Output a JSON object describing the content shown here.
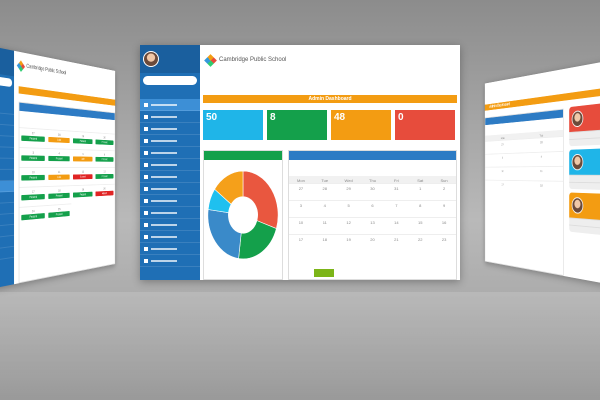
{
  "app": {
    "school_name": "Cambridge Public School",
    "dashboard_title": "Admin Dashboard"
  },
  "colors": {
    "sidebar": "#1f6fb5",
    "orange": "#f39c12",
    "cyan": "#1fb5e8",
    "green": "#14a04b",
    "red": "#e74c3c",
    "blue": "#2d7bc4"
  },
  "stats": [
    {
      "value": "50",
      "color": "#1fb5e8"
    },
    {
      "value": "8",
      "color": "#14a04b"
    },
    {
      "value": "48",
      "color": "#f39c12"
    },
    {
      "value": "0",
      "color": "#e74c3c"
    }
  ],
  "login_chart": {
    "type": "pie",
    "slices": [
      {
        "value": 30,
        "color": "#e9573f"
      },
      {
        "value": 22,
        "color": "#14a04b"
      },
      {
        "value": 25,
        "color": "#3a8ac9"
      },
      {
        "value": 8,
        "color": "#1fc0ef"
      },
      {
        "value": 15,
        "color": "#f5a01a"
      }
    ]
  },
  "calendar": {
    "days": [
      "Mon",
      "Tue",
      "Wed",
      "Thu",
      "Fri",
      "Sat",
      "Sun"
    ],
    "dates": [
      "27",
      "28",
      "29",
      "30",
      "31",
      "1",
      "2",
      "3",
      "4",
      "5",
      "6",
      "7",
      "8",
      "9",
      "10",
      "11",
      "12",
      "13",
      "14",
      "15",
      "16",
      "17",
      "18",
      "19",
      "20",
      "21",
      "22",
      "23"
    ]
  },
  "attendance": {
    "dates": [
      "27",
      "28",
      "29",
      "30",
      "3",
      "4",
      "5",
      "6",
      "10",
      "11",
      "12",
      "13",
      "17",
      "18",
      "19",
      "20",
      "24",
      "25"
    ],
    "status": [
      "Present",
      "Late",
      "Present",
      "Present",
      "Present",
      "Present",
      "Late",
      "Present",
      "Present",
      "Late",
      "Absent",
      "Present",
      "Present",
      "Present",
      "Present",
      "Absent",
      "Present",
      "Present"
    ]
  },
  "status_colors": {
    "Present": "#14a04b",
    "Late": "#f39c12",
    "Absent": "#e02424"
  },
  "profile_cards": [
    {
      "color": "#e74c3c"
    },
    {
      "color": "#1fb5e8"
    },
    {
      "color": "#f39c12"
    }
  ]
}
